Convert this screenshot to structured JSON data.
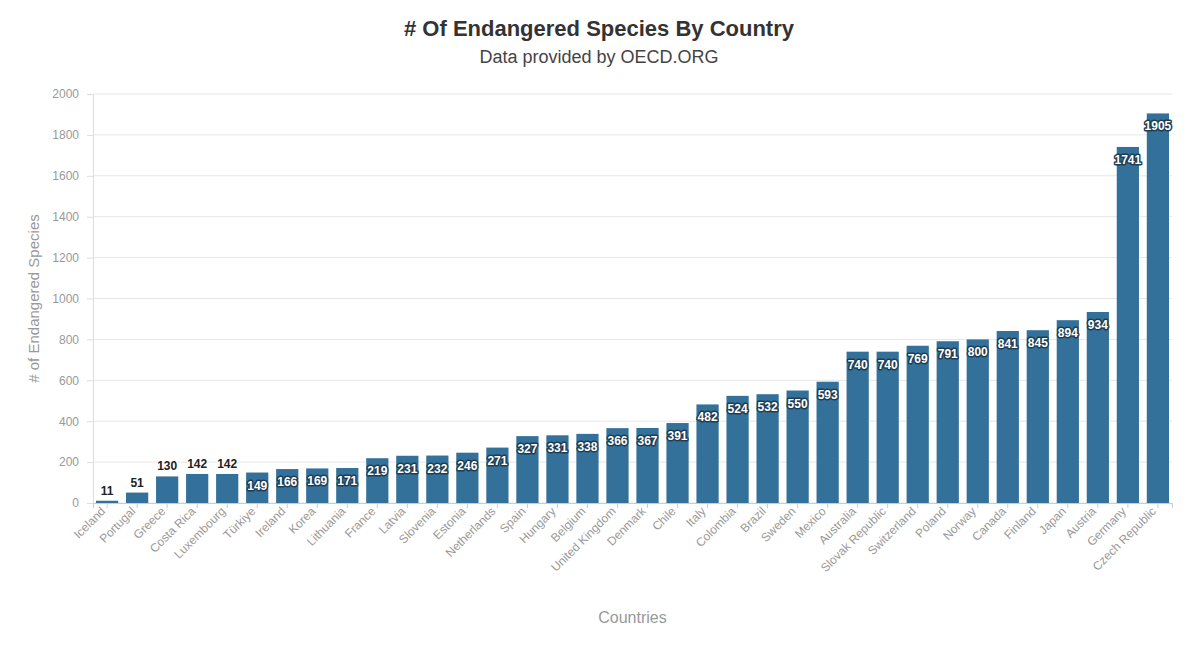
{
  "chart_data": {
    "type": "bar",
    "title": "# Of Endangered Species By Country",
    "subtitle": "Data provided by OECD.ORG",
    "x_label": "Countries",
    "y_label": "# of Endangered Species",
    "categories": [
      "Iceland",
      "Portugal",
      "Greece",
      "Costa Rica",
      "Luxembourg",
      "Türkiye",
      "Ireland",
      "Korea",
      "Lithuania",
      "France",
      "Latvia",
      "Slovenia",
      "Estonia",
      "Netherlands",
      "Spain",
      "Hungary",
      "Belgium",
      "United Kingdom",
      "Denmark",
      "Chile",
      "Italy",
      "Colombia",
      "Brazil",
      "Sweden",
      "Mexico",
      "Australia",
      "Slovak Republic",
      "Switzerland",
      "Poland",
      "Norway",
      "Canada",
      "Finland",
      "Japan",
      "Austria",
      "Germany",
      "Czech Republic"
    ],
    "values": [
      11,
      51,
      130,
      142,
      142,
      149,
      166,
      169,
      171,
      219,
      231,
      232,
      246,
      271,
      327,
      331,
      338,
      366,
      367,
      391,
      482,
      524,
      532,
      550,
      593,
      740,
      740,
      769,
      791,
      800,
      841,
      845,
      894,
      934,
      1741,
      1905
    ],
    "color": "#33719a",
    "ylim": [
      0,
      2000
    ],
    "yticks": [
      0,
      200,
      400,
      600,
      800,
      1000,
      1200,
      1400,
      1600,
      1800,
      2000
    ],
    "grid": true,
    "data_labels": true
  }
}
